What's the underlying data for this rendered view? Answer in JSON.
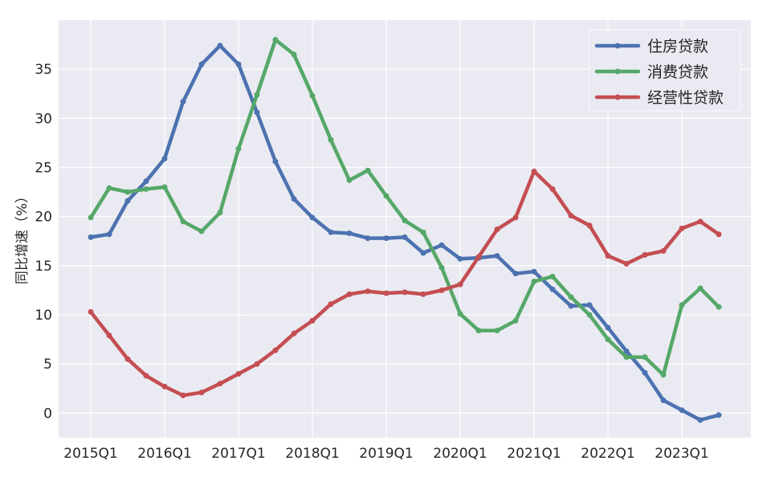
{
  "chart_data": {
    "type": "line",
    "title": "",
    "xlabel": "",
    "ylabel": "同比增速（%）",
    "ylim": [
      -2.5,
      40
    ],
    "yticks": [
      0,
      5,
      10,
      15,
      20,
      25,
      30,
      35
    ],
    "xtick_labels": [
      "2015Q1",
      "2016Q1",
      "2017Q1",
      "2018Q1",
      "2019Q1",
      "2020Q1",
      "2021Q1",
      "2022Q1",
      "2023Q1"
    ],
    "grid": true,
    "legend_position": "top-right",
    "x": [
      "2015Q1",
      "2015Q2",
      "2015Q3",
      "2015Q4",
      "2016Q1",
      "2016Q2",
      "2016Q3",
      "2016Q4",
      "2017Q1",
      "2017Q2",
      "2017Q3",
      "2017Q4",
      "2018Q1",
      "2018Q2",
      "2018Q3",
      "2018Q4",
      "2019Q1",
      "2019Q2",
      "2019Q3",
      "2019Q4",
      "2020Q1",
      "2020Q2",
      "2020Q3",
      "2020Q4",
      "2021Q1",
      "2021Q2",
      "2021Q3",
      "2021Q4",
      "2022Q1",
      "2022Q2",
      "2022Q3",
      "2022Q4",
      "2023Q1",
      "2023Q2",
      "2023Q3"
    ],
    "series": [
      {
        "name": "住房贷款",
        "color": "#4C72B0",
        "values": [
          17.9,
          18.2,
          21.6,
          23.6,
          25.9,
          31.7,
          35.5,
          37.4,
          35.5,
          30.6,
          25.6,
          21.8,
          19.9,
          18.4,
          18.3,
          17.8,
          17.8,
          17.9,
          16.3,
          17.1,
          15.7,
          15.8,
          16.0,
          14.2,
          14.4,
          12.6,
          10.9,
          11.0,
          8.7,
          6.3,
          4.1,
          1.3,
          0.3,
          -0.7,
          -0.2
        ]
      },
      {
        "name": "消费贷款",
        "color": "#55A868",
        "values": [
          19.9,
          22.9,
          22.5,
          22.8,
          23.0,
          19.5,
          18.5,
          20.4,
          26.9,
          32.4,
          38.0,
          36.5,
          32.3,
          27.8,
          23.7,
          24.7,
          22.1,
          19.6,
          18.4,
          14.8,
          10.1,
          8.4,
          8.4,
          9.4,
          13.4,
          13.9,
          11.8,
          10.0,
          7.5,
          5.7,
          5.7,
          3.9,
          11.0,
          12.7,
          10.8
        ]
      },
      {
        "name": "经营性贷款",
        "color": "#C44E52",
        "values": [
          10.3,
          7.9,
          5.5,
          3.8,
          2.7,
          1.8,
          2.1,
          3.0,
          4.0,
          5.0,
          6.4,
          8.1,
          9.4,
          11.1,
          12.1,
          12.4,
          12.2,
          12.3,
          12.1,
          12.5,
          13.1,
          15.9,
          18.7,
          19.9,
          24.6,
          22.8,
          20.1,
          19.1,
          16.0,
          15.2,
          16.1,
          16.5,
          18.8,
          19.5,
          18.2
        ]
      }
    ]
  }
}
